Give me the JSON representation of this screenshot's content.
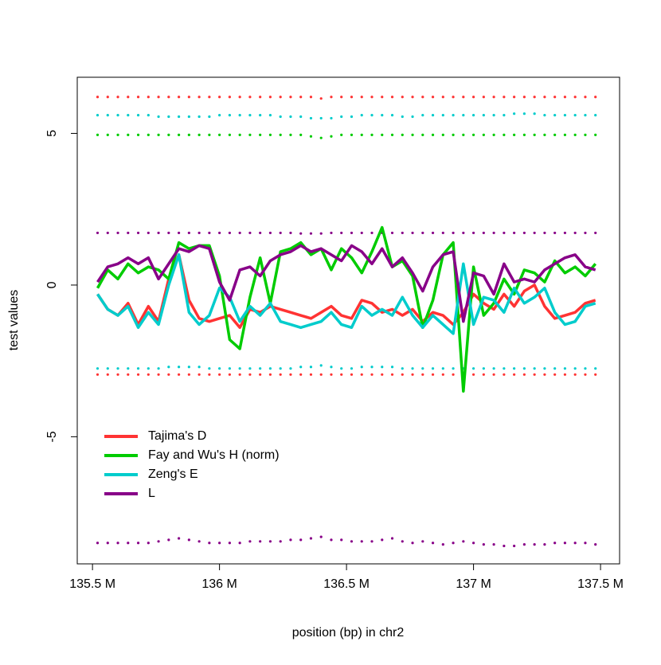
{
  "chart_data": {
    "type": "line",
    "x_label": "position (bp) in chr2",
    "y_label": "test values",
    "x": [
      135520000,
      135560000,
      135600000,
      135640000,
      135680000,
      135720000,
      135760000,
      135800000,
      135840000,
      135880000,
      135920000,
      135960000,
      136000000,
      136040000,
      136080000,
      136120000,
      136160000,
      136200000,
      136240000,
      136280000,
      136320000,
      136360000,
      136400000,
      136440000,
      136480000,
      136520000,
      136560000,
      136600000,
      136640000,
      136680000,
      136720000,
      136760000,
      136800000,
      136840000,
      136880000,
      136920000,
      136960000,
      137000000,
      137040000,
      137080000,
      137120000,
      137160000,
      137200000,
      137240000,
      137280000,
      137320000,
      137360000,
      137400000,
      137440000,
      137480000
    ],
    "series": [
      {
        "name": "Tajima's D",
        "color": "#ff3333",
        "values": [
          -0.3,
          -0.8,
          -1.0,
          -0.6,
          -1.3,
          -0.7,
          -1.2,
          0.2,
          1.0,
          -0.5,
          -1.1,
          -1.2,
          -1.1,
          -1.0,
          -1.4,
          -0.8,
          -0.9,
          -0.7,
          -0.8,
          -0.9,
          -1.0,
          -1.1,
          -0.9,
          -0.7,
          -1.0,
          -1.1,
          -0.5,
          -0.6,
          -0.9,
          -0.8,
          -1.0,
          -0.8,
          -1.2,
          -0.9,
          -1.0,
          -1.3,
          -0.9,
          -0.3,
          -0.6,
          -0.8,
          -0.3,
          -0.7,
          -0.2,
          0.0,
          -0.7,
          -1.1,
          -1.0,
          -0.9,
          -0.6,
          -0.5
        ]
      },
      {
        "name": "Fay and Wu's H (norm)",
        "color": "#00cc00",
        "values": [
          -0.1,
          0.5,
          0.2,
          0.7,
          0.4,
          0.6,
          0.5,
          0.2,
          1.4,
          1.2,
          1.3,
          1.3,
          0.3,
          -1.8,
          -2.1,
          -0.4,
          0.9,
          -0.6,
          1.1,
          1.2,
          1.4,
          1.0,
          1.2,
          0.5,
          1.2,
          0.9,
          0.4,
          1.1,
          1.9,
          0.6,
          0.8,
          0.3,
          -1.4,
          -0.5,
          1.0,
          1.4,
          -3.5,
          0.6,
          -1.0,
          -0.6,
          0.2,
          -0.3,
          0.5,
          0.4,
          0.1,
          0.8,
          0.4,
          0.6,
          0.3,
          0.7
        ]
      },
      {
        "name": "Zeng's E",
        "color": "#00cccc",
        "values": [
          -0.3,
          -0.8,
          -1.0,
          -0.7,
          -1.4,
          -0.9,
          -1.3,
          0.0,
          1.0,
          -0.9,
          -1.3,
          -1.0,
          -0.1,
          -0.4,
          -1.2,
          -0.7,
          -1.0,
          -0.6,
          -1.2,
          -1.3,
          -1.4,
          -1.3,
          -1.2,
          -0.9,
          -1.3,
          -1.4,
          -0.7,
          -1.0,
          -0.8,
          -1.0,
          -0.4,
          -1.0,
          -1.4,
          -1.0,
          -1.3,
          -1.6,
          0.7,
          -1.3,
          -0.4,
          -0.5,
          -0.9,
          -0.1,
          -0.6,
          -0.4,
          -0.1,
          -0.9,
          -1.3,
          -1.2,
          -0.7,
          -0.6
        ]
      },
      {
        "name": "L",
        "color": "#880088",
        "values": [
          0.1,
          0.6,
          0.7,
          0.9,
          0.7,
          0.9,
          0.2,
          0.7,
          1.2,
          1.1,
          1.3,
          1.2,
          0.1,
          -0.5,
          0.5,
          0.6,
          0.3,
          0.8,
          1.0,
          1.1,
          1.3,
          1.1,
          1.2,
          1.0,
          0.8,
          1.3,
          1.1,
          0.7,
          1.2,
          0.6,
          0.9,
          0.4,
          -0.2,
          0.6,
          1.0,
          1.1,
          -1.2,
          0.4,
          0.3,
          -0.3,
          0.7,
          0.1,
          0.2,
          0.1,
          0.5,
          0.7,
          0.9,
          1.0,
          0.6,
          0.5
        ]
      }
    ],
    "dotted_lines": [
      {
        "color": "#ff3333",
        "values": [
          6.2,
          6.2,
          6.2,
          6.2,
          6.2,
          6.2,
          6.2,
          6.2,
          6.2,
          6.2,
          6.2,
          6.2,
          6.2,
          6.2,
          6.2,
          6.2,
          6.2,
          6.2,
          6.2,
          6.2,
          6.2,
          6.2,
          6.15,
          6.2,
          6.2,
          6.2,
          6.2,
          6.2,
          6.2,
          6.2,
          6.2,
          6.2,
          6.2,
          6.2,
          6.2,
          6.2,
          6.2,
          6.2,
          6.2,
          6.2,
          6.2,
          6.2,
          6.2,
          6.2,
          6.2,
          6.2,
          6.2,
          6.2,
          6.2,
          6.2
        ]
      },
      {
        "color": "#00cccc",
        "values": [
          5.6,
          5.6,
          5.6,
          5.6,
          5.6,
          5.6,
          5.55,
          5.55,
          5.55,
          5.55,
          5.55,
          5.55,
          5.6,
          5.6,
          5.6,
          5.6,
          5.6,
          5.6,
          5.55,
          5.55,
          5.55,
          5.5,
          5.5,
          5.5,
          5.55,
          5.55,
          5.6,
          5.6,
          5.6,
          5.6,
          5.55,
          5.55,
          5.6,
          5.6,
          5.6,
          5.6,
          5.6,
          5.6,
          5.6,
          5.6,
          5.6,
          5.65,
          5.65,
          5.65,
          5.6,
          5.6,
          5.6,
          5.6,
          5.6,
          5.6
        ]
      },
      {
        "color": "#00cc00",
        "values": [
          4.95,
          4.95,
          4.95,
          4.95,
          4.95,
          4.95,
          4.95,
          4.95,
          4.95,
          4.95,
          4.95,
          4.95,
          4.95,
          4.95,
          4.95,
          4.95,
          4.95,
          4.95,
          4.95,
          4.95,
          4.95,
          4.9,
          4.85,
          4.9,
          4.95,
          4.95,
          4.95,
          4.95,
          4.95,
          4.95,
          4.95,
          4.95,
          4.95,
          4.95,
          4.95,
          4.95,
          4.95,
          4.95,
          4.95,
          4.95,
          4.95,
          4.95,
          4.95,
          4.95,
          4.95,
          4.95,
          4.95,
          4.95,
          4.95,
          4.95
        ]
      },
      {
        "color": "#880088",
        "values": [
          1.72,
          1.72,
          1.72,
          1.72,
          1.72,
          1.72,
          1.72,
          1.72,
          1.72,
          1.72,
          1.72,
          1.72,
          1.72,
          1.72,
          1.72,
          1.72,
          1.72,
          1.72,
          1.72,
          1.72,
          1.7,
          1.7,
          1.7,
          1.72,
          1.72,
          1.72,
          1.72,
          1.72,
          1.72,
          1.72,
          1.72,
          1.72,
          1.72,
          1.72,
          1.72,
          1.72,
          1.72,
          1.72,
          1.72,
          1.72,
          1.72,
          1.72,
          1.72,
          1.72,
          1.72,
          1.72,
          1.72,
          1.72,
          1.72,
          1.72
        ]
      },
      {
        "color": "#00cccc",
        "values": [
          -2.75,
          -2.75,
          -2.75,
          -2.75,
          -2.75,
          -2.75,
          -2.75,
          -2.7,
          -2.7,
          -2.7,
          -2.7,
          -2.75,
          -2.75,
          -2.75,
          -2.75,
          -2.75,
          -2.75,
          -2.75,
          -2.75,
          -2.75,
          -2.7,
          -2.7,
          -2.65,
          -2.7,
          -2.75,
          -2.75,
          -2.7,
          -2.7,
          -2.7,
          -2.7,
          -2.75,
          -2.75,
          -2.75,
          -2.75,
          -2.75,
          -2.75,
          -2.75,
          -2.75,
          -2.75,
          -2.75,
          -2.75,
          -2.75,
          -2.75,
          -2.75,
          -2.75,
          -2.75,
          -2.75,
          -2.75,
          -2.75,
          -2.75
        ]
      },
      {
        "color": "#ff3333",
        "values": [
          -2.95,
          -2.95,
          -2.95,
          -2.95,
          -2.95,
          -2.95,
          -2.95,
          -2.95,
          -2.95,
          -2.95,
          -2.95,
          -2.95,
          -2.95,
          -2.95,
          -2.95,
          -2.95,
          -2.95,
          -2.95,
          -2.95,
          -2.95,
          -2.95,
          -2.95,
          -2.95,
          -2.95,
          -2.95,
          -2.95,
          -2.95,
          -2.95,
          -2.95,
          -2.95,
          -2.95,
          -2.95,
          -2.95,
          -2.95,
          -2.95,
          -2.95,
          -2.95,
          -2.95,
          -2.95,
          -2.95,
          -2.95,
          -2.95,
          -2.95,
          -2.95,
          -2.95,
          -2.95,
          -2.95,
          -2.95,
          -2.95,
          -2.95
        ]
      },
      {
        "color": "#880088",
        "values": [
          -8.5,
          -8.5,
          -8.5,
          -8.5,
          -8.5,
          -8.5,
          -8.45,
          -8.4,
          -8.35,
          -8.4,
          -8.45,
          -8.5,
          -8.5,
          -8.5,
          -8.5,
          -8.45,
          -8.45,
          -8.45,
          -8.45,
          -8.4,
          -8.4,
          -8.35,
          -8.3,
          -8.4,
          -8.4,
          -8.45,
          -8.45,
          -8.45,
          -8.4,
          -8.35,
          -8.45,
          -8.5,
          -8.45,
          -8.5,
          -8.55,
          -8.5,
          -8.45,
          -8.5,
          -8.55,
          -8.55,
          -8.6,
          -8.6,
          -8.55,
          -8.55,
          -8.55,
          -8.5,
          -8.5,
          -8.5,
          -8.5,
          -8.55
        ]
      }
    ],
    "xlim": [
      135440000,
      137575000
    ],
    "ylim": [
      -9.19,
      6.85
    ],
    "xticks": [
      {
        "value": 135500000,
        "label": "135.5 M"
      },
      {
        "value": 136000000,
        "label": "136 M"
      },
      {
        "value": 136500000,
        "label": "136.5 M"
      },
      {
        "value": 137000000,
        "label": "137 M"
      },
      {
        "value": 137500000,
        "label": "137.5 M"
      }
    ],
    "yticks": [
      -5,
      0,
      5
    ],
    "legend": "bottom-left"
  }
}
